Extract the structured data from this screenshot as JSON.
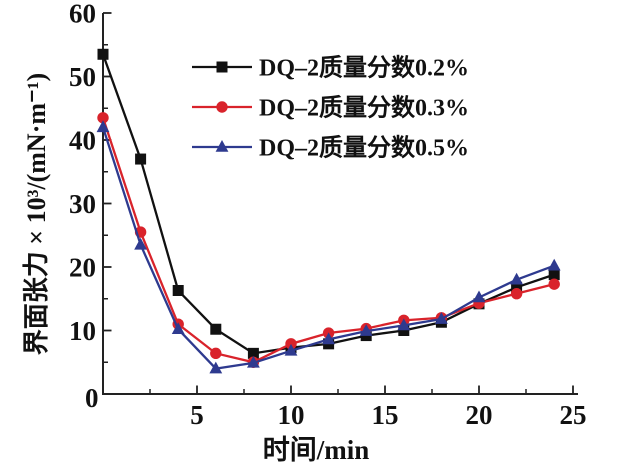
{
  "chart_data": {
    "type": "line",
    "title": "",
    "xlabel": "时间/min",
    "ylabel": "界面张力 × 10³/(mN·m⁻¹)",
    "xlim": [
      0,
      25
    ],
    "ylim": [
      0,
      60
    ],
    "x_major_ticks": [
      5,
      10,
      15,
      20,
      25
    ],
    "x_minor_ticks": [
      2.5,
      7.5,
      12.5,
      17.5,
      22.5
    ],
    "y_major_ticks": [
      10,
      20,
      30,
      40,
      50,
      60
    ],
    "y_minor_ticks": [
      5,
      15,
      25,
      35,
      45,
      55
    ],
    "origin_label": "0",
    "grid": false,
    "legend_position": "inside-top-right",
    "x": [
      0,
      2,
      4,
      6,
      8,
      10,
      12,
      14,
      16,
      18,
      20,
      22,
      24
    ],
    "series": [
      {
        "name": "DQ–2质量分数0.2%",
        "marker": "square",
        "color": "#111111",
        "values": [
          53.5,
          37.0,
          16.3,
          10.2,
          6.4,
          7.3,
          7.9,
          9.2,
          10.0,
          11.3,
          14.2,
          16.8,
          18.8
        ]
      },
      {
        "name": "DQ–2质量分数0.3%",
        "marker": "circle",
        "color": "#d9232b",
        "values": [
          43.5,
          25.5,
          11.0,
          6.4,
          5.0,
          7.9,
          9.6,
          10.3,
          11.6,
          12.0,
          14.3,
          15.8,
          17.3
        ]
      },
      {
        "name": "DQ–2质量分数0.5%",
        "marker": "triangle",
        "color": "#2e3a8f",
        "values": [
          42.0,
          23.5,
          10.2,
          4.0,
          4.9,
          6.8,
          8.6,
          9.9,
          10.8,
          11.8,
          15.2,
          18.0,
          20.2
        ]
      }
    ],
    "colors": {
      "axis": "#222222",
      "text": "#111111",
      "background": "#ffffff"
    }
  }
}
